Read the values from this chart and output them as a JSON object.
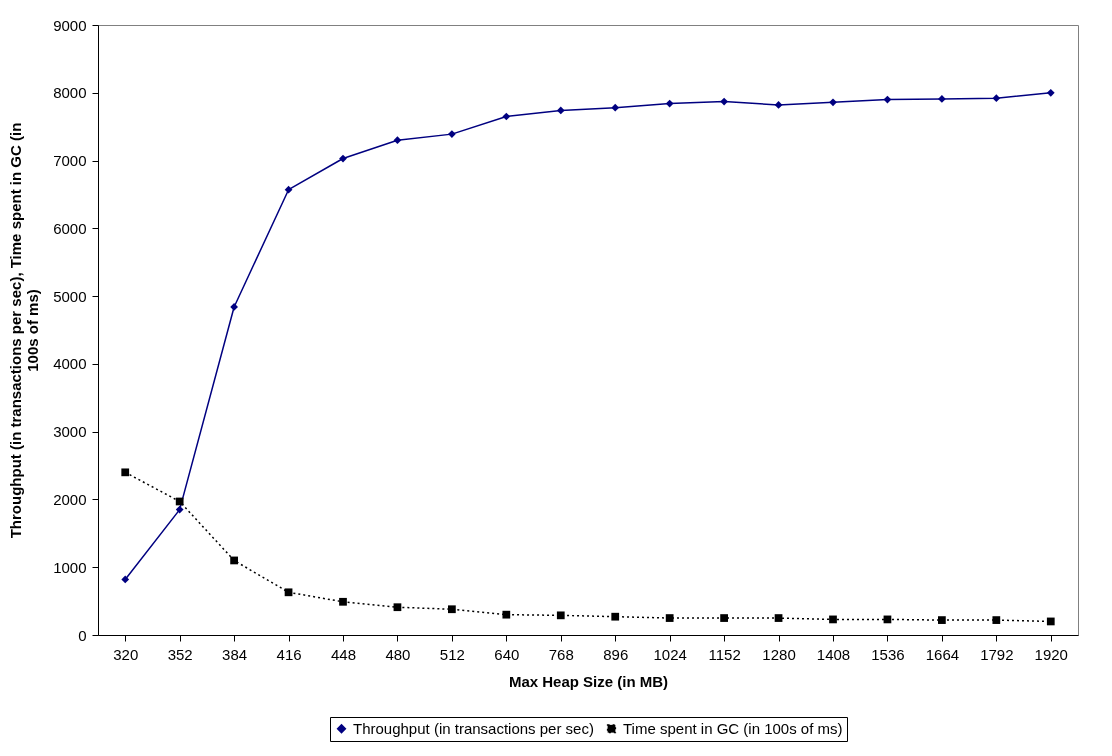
{
  "chart_data": {
    "type": "line",
    "xlabel": "Max Heap Size (in MB)",
    "ylabel": "Throughput (in transactions per sec), Time spent in GC (in 100s of ms)",
    "categories": [
      "320",
      "352",
      "384",
      "416",
      "448",
      "480",
      "512",
      "640",
      "768",
      "896",
      "1024",
      "1152",
      "1280",
      "1408",
      "1536",
      "1664",
      "1792",
      "1920"
    ],
    "ylim": [
      0,
      9000
    ],
    "yticks": [
      0,
      1000,
      2000,
      3000,
      4000,
      5000,
      6000,
      7000,
      8000,
      9000
    ],
    "grid": false,
    "legend": "bottom",
    "series": [
      {
        "name": "Throughput (in transactions per sec)",
        "color": "#000080",
        "marker": "diamond",
        "line_style": "solid",
        "values": [
          820,
          1850,
          4840,
          6570,
          7030,
          7300,
          7390,
          7650,
          7740,
          7780,
          7840,
          7870,
          7820,
          7860,
          7900,
          7910,
          7920,
          8000
        ]
      },
      {
        "name": "Time spent in GC (in 100s of ms)",
        "color": "#000000",
        "marker": "square",
        "line_style": "dotted",
        "values": [
          2400,
          1970,
          1100,
          630,
          490,
          410,
          380,
          300,
          290,
          270,
          250,
          250,
          250,
          230,
          230,
          220,
          220,
          200
        ]
      }
    ]
  }
}
